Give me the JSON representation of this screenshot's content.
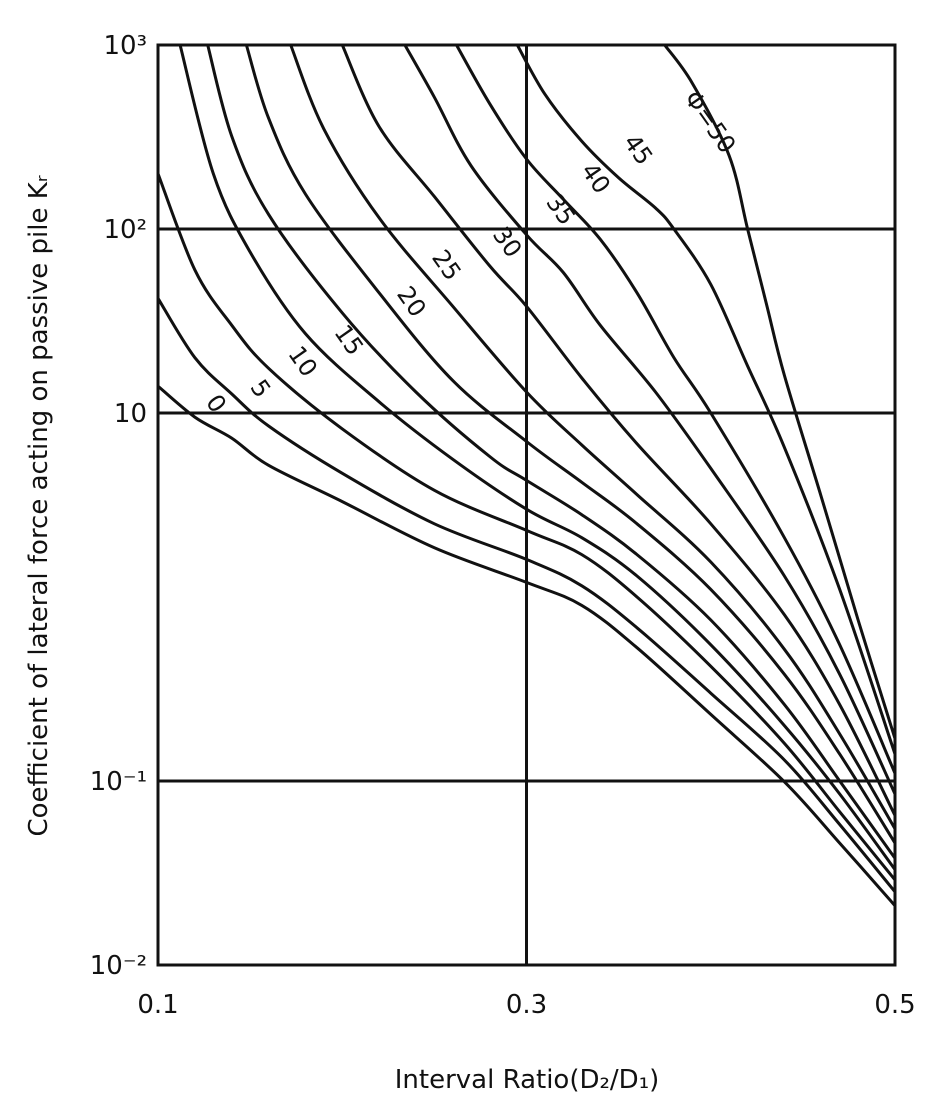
{
  "chart_data": {
    "type": "line",
    "xlabel": "Interval Ratio(D₂/D₁)",
    "ylabel": "Coefficient of lateral force acting on passive pile Kᵣ",
    "xlim": [
      0.1,
      0.5
    ],
    "ylim": [
      0.01,
      1000
    ],
    "y_scale": "log",
    "grid": true,
    "x_ticks": [
      {
        "value": 0.1,
        "label": "0.1"
      },
      {
        "value": 0.3,
        "label": "0.3"
      },
      {
        "value": 0.5,
        "label": "0.5"
      }
    ],
    "y_ticks": [
      {
        "value": 1000,
        "label": "10³"
      },
      {
        "value": 100,
        "label": "10²"
      },
      {
        "value": 10,
        "label": "10"
      },
      {
        "value": 0.1,
        "label": "10⁻¹"
      },
      {
        "value": 0.01,
        "label": "10⁻²"
      }
    ],
    "series": [
      {
        "name": "0",
        "x": [
          0.1,
          0.12,
          0.14,
          0.16,
          0.2,
          0.25,
          0.3,
          0.33,
          0.36,
          0.4,
          0.44,
          0.47,
          0.5
        ],
        "y": [
          14,
          9.5,
          7.3,
          5.2,
          3.3,
          1.85,
          1.2,
          0.9,
          0.53,
          0.23,
          0.099,
          0.046,
          0.021
        ]
      },
      {
        "name": "5",
        "x": [
          0.1,
          0.12,
          0.14,
          0.16,
          0.2,
          0.25,
          0.3,
          0.33,
          0.36,
          0.4,
          0.44,
          0.47,
          0.5
        ],
        "y": [
          42,
          20,
          12.7,
          8.5,
          4.7,
          2.5,
          1.6,
          1.15,
          0.68,
          0.3,
          0.13,
          0.058,
          0.025
        ]
      },
      {
        "name": "10",
        "x": [
          0.1,
          0.12,
          0.14,
          0.16,
          0.2,
          0.25,
          0.3,
          0.33,
          0.36,
          0.4,
          0.44,
          0.47,
          0.5
        ],
        "y": [
          200,
          60,
          30,
          17.5,
          8.2,
          3.8,
          2.3,
          1.7,
          1.0,
          0.42,
          0.16,
          0.068,
          0.029
        ]
      },
      {
        "name": "15",
        "x": [
          0.112,
          0.13,
          0.15,
          0.18,
          0.22,
          0.26,
          0.3,
          0.33,
          0.36,
          0.4,
          0.44,
          0.47,
          0.5
        ],
        "y": [
          1000,
          200,
          75,
          27,
          11.5,
          5.6,
          3.0,
          2.1,
          1.3,
          0.55,
          0.2,
          0.085,
          0.033
        ]
      },
      {
        "name": "20",
        "x": [
          0.127,
          0.14,
          0.16,
          0.2,
          0.24,
          0.28,
          0.3,
          0.33,
          0.36,
          0.4,
          0.44,
          0.47,
          0.5
        ],
        "y": [
          1000,
          320,
          120,
          35,
          13,
          5.8,
          4.3,
          2.8,
          1.7,
          0.75,
          0.26,
          0.1,
          0.038
        ]
      },
      {
        "name": "25",
        "x": [
          0.148,
          0.16,
          0.18,
          0.22,
          0.26,
          0.3,
          0.33,
          0.36,
          0.4,
          0.44,
          0.47,
          0.5
        ],
        "y": [
          1000,
          400,
          155,
          45,
          15,
          7.0,
          4.2,
          2.5,
          1.1,
          0.38,
          0.14,
          0.046
        ]
      },
      {
        "name": "30",
        "x": [
          0.172,
          0.19,
          0.22,
          0.26,
          0.3,
          0.33,
          0.36,
          0.4,
          0.44,
          0.47,
          0.5
        ],
        "y": [
          1000,
          350,
          115,
          38,
          13,
          6.7,
          3.6,
          1.55,
          0.52,
          0.18,
          0.055
        ]
      },
      {
        "name": "35",
        "x": [
          0.2,
          0.22,
          0.25,
          0.28,
          0.3,
          0.33,
          0.36,
          0.4,
          0.44,
          0.47,
          0.5
        ],
        "y": [
          1000,
          360,
          150,
          63,
          38,
          15.5,
          6.8,
          2.5,
          0.8,
          0.26,
          0.065
        ]
      },
      {
        "name": "40",
        "x": [
          0.234,
          0.25,
          0.27,
          0.3,
          0.32,
          0.34,
          0.37,
          0.4,
          0.44,
          0.47,
          0.5
        ],
        "y": [
          1000,
          520,
          220,
          93,
          58,
          30,
          13,
          5.0,
          1.3,
          0.38,
          0.085
        ]
      },
      {
        "name": "45",
        "x": [
          0.262,
          0.28,
          0.3,
          0.32,
          0.34,
          0.36,
          0.38,
          0.4,
          0.44,
          0.47,
          0.5
        ],
        "y": [
          1000,
          480,
          240,
          145,
          88,
          45,
          20,
          10,
          2.1,
          0.55,
          0.11
        ]
      },
      {
        "name": "50",
        "x": [
          0.295,
          0.31,
          0.33,
          0.35,
          0.37,
          0.38,
          0.4,
          0.42,
          0.44,
          0.47,
          0.5
        ],
        "y": [
          1000,
          540,
          300,
          190,
          130,
          100,
          50,
          18,
          6.5,
          1.1,
          0.14
        ]
      },
      {
        "name": "Φ=50",
        "x": [
          0.375,
          0.39,
          0.41,
          0.42,
          0.43,
          0.44,
          0.46,
          0.48,
          0.5
        ],
        "y": [
          1000,
          620,
          250,
          100,
          40,
          16,
          3.5,
          0.75,
          0.17
        ]
      }
    ],
    "curve_labels": [
      {
        "text": "0",
        "x": 0.128,
        "y": 10.6
      },
      {
        "text": "5",
        "x": 0.152,
        "y": 12.8
      },
      {
        "text": "10",
        "x": 0.175,
        "y": 18.0
      },
      {
        "text": "15",
        "x": 0.2,
        "y": 23.5
      },
      {
        "text": "20",
        "x": 0.234,
        "y": 38.0
      },
      {
        "text": "25",
        "x": 0.253,
        "y": 60.0
      },
      {
        "text": "30",
        "x": 0.286,
        "y": 80.0
      },
      {
        "text": "35",
        "x": 0.315,
        "y": 120.0
      },
      {
        "text": "40",
        "x": 0.334,
        "y": 178.0
      },
      {
        "text": "45",
        "x": 0.357,
        "y": 255.0
      },
      {
        "text": "Φ=50",
        "x": 0.396,
        "y": 360.0
      }
    ]
  }
}
